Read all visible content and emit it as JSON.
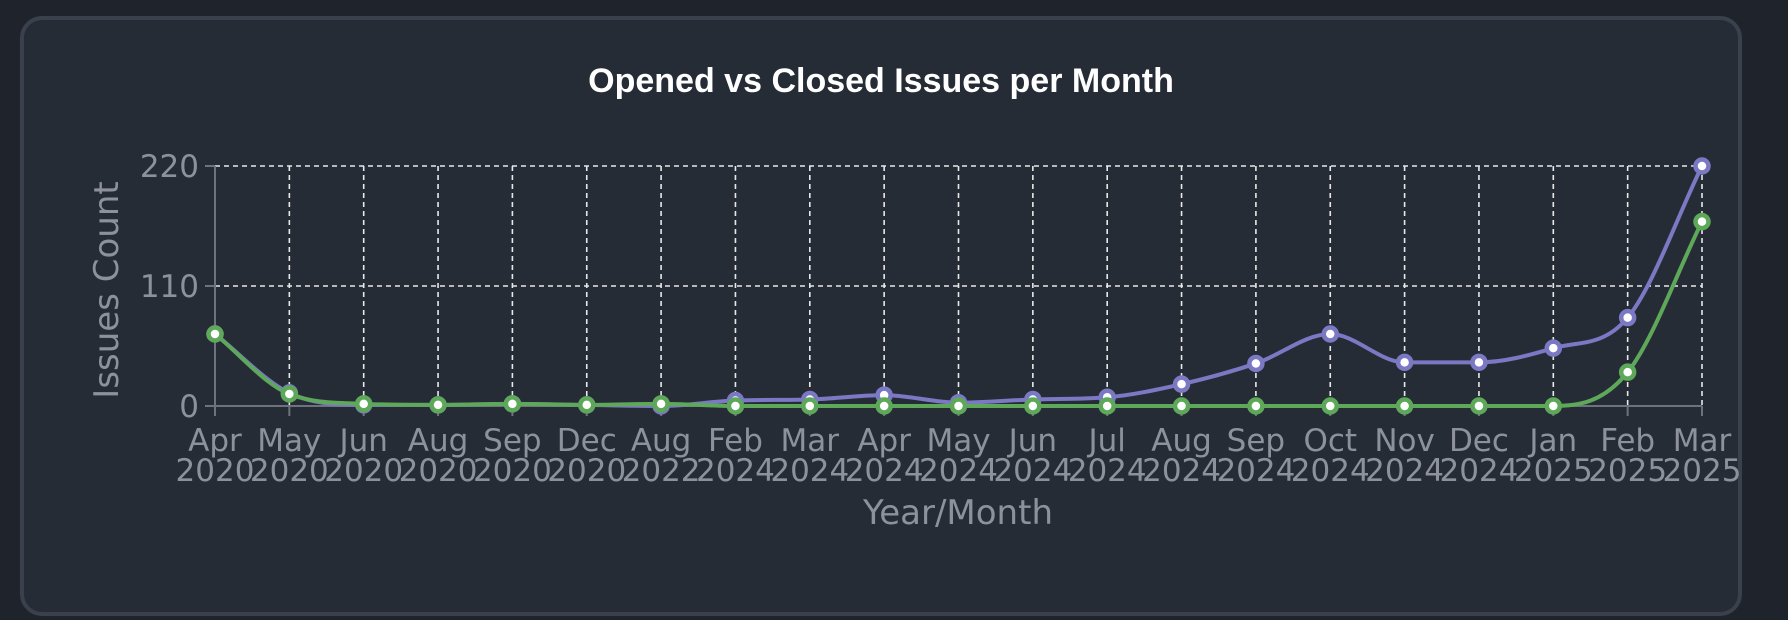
{
  "chart_data": {
    "type": "line",
    "title": "Opened vs Closed Issues per Month",
    "xlabel": "Year/Month",
    "ylabel": "Issues Count",
    "ylim": [
      0,
      220
    ],
    "yticks": [
      "0",
      "110",
      "220"
    ],
    "grid": true,
    "legend": "none",
    "categories": [
      [
        "Apr",
        "2020"
      ],
      [
        "May",
        "2020"
      ],
      [
        "Jun",
        "2020"
      ],
      [
        "Aug",
        "2020"
      ],
      [
        "Sep",
        "2020"
      ],
      [
        "Dec",
        "2020"
      ],
      [
        "Aug",
        "2022"
      ],
      [
        "Feb",
        "2024"
      ],
      [
        "Mar",
        "2024"
      ],
      [
        "Apr",
        "2024"
      ],
      [
        "May",
        "2024"
      ],
      [
        "Jun",
        "2024"
      ],
      [
        "Jul",
        "2024"
      ],
      [
        "Aug",
        "2024"
      ],
      [
        "Sep",
        "2024"
      ],
      [
        "Oct",
        "2024"
      ],
      [
        "Nov",
        "2024"
      ],
      [
        "Dec",
        "2024"
      ],
      [
        "Jan",
        "2025"
      ],
      [
        "Feb",
        "2025"
      ],
      [
        "Mar",
        "2025"
      ]
    ],
    "series": [
      {
        "color": "#7b78c4",
        "values": [
          66,
          12,
          1,
          1,
          2,
          1,
          0,
          5,
          6,
          10,
          3,
          6,
          8,
          20,
          39,
          66,
          40,
          40,
          53,
          81,
          220
        ]
      },
      {
        "color": "#5ea85a",
        "values": [
          66,
          11,
          2,
          1,
          2,
          1,
          2,
          0,
          0,
          0,
          0,
          0,
          0,
          0,
          0,
          0,
          0,
          0,
          0,
          31,
          169
        ]
      }
    ]
  }
}
